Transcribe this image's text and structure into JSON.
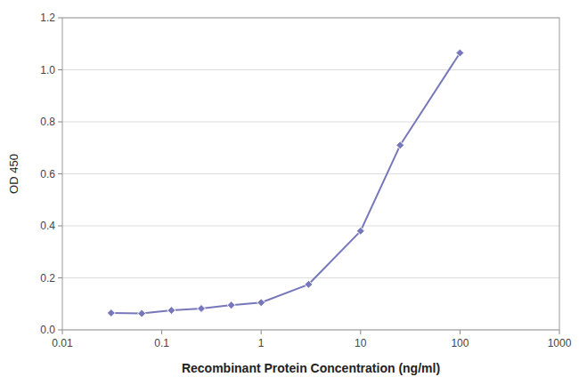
{
  "chart_data": {
    "type": "line",
    "x": [
      0.031,
      0.063,
      0.125,
      0.25,
      0.5,
      1.0,
      3.0,
      10.0,
      25.0,
      100.0
    ],
    "values": [
      0.065,
      0.063,
      0.075,
      0.082,
      0.095,
      0.105,
      0.175,
      0.38,
      0.71,
      1.065
    ],
    "color": "#7777bb",
    "marker": "diamond",
    "xlabel": "Recombinant Protein Concentration (ng/ml)",
    "ylabel": "OD 450",
    "log": "x",
    "xlim": [
      0.01,
      1000
    ],
    "ylim": [
      0,
      1.2
    ],
    "xticks": [
      0.01,
      0.1,
      1,
      10,
      100,
      1000
    ],
    "yticks": [
      {
        "value": 0,
        "label": "0.0"
      },
      0.2,
      0.4,
      0.6,
      0.8,
      {
        "value": 1,
        "label": "1.0"
      },
      1.2
    ],
    "grid": true
  }
}
